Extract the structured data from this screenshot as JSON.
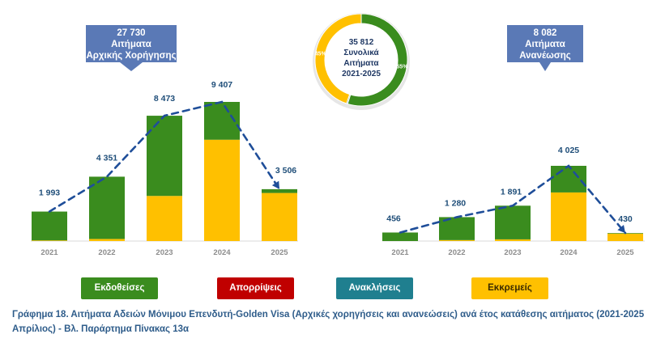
{
  "colors": {
    "issued": "#3a8c1e",
    "rejected": "#c00000",
    "withdrawn": "#1f7f8f",
    "pending": "#ffc000",
    "callout": "#5a79b6",
    "trend": "#1f4e99"
  },
  "callouts": {
    "initial": {
      "line1": "27 730",
      "line2": "Αιτήματα",
      "line3": "Αρχικής Χορήγησης"
    },
    "renewal": {
      "line1": "8 082",
      "line2": "Αιτήματα",
      "line3": "Ανανέωσης"
    }
  },
  "donut_total": {
    "line1": "35 812",
    "line2": "Συνολικά",
    "line3": "Αιτήματα",
    "line4": "2021-2025"
  },
  "legend": {
    "issued": "Εκδοθείσες",
    "rejected": "Απορρίψεις",
    "withdrawn": "Ανακλήσεις",
    "pending": "Εκκρεμείς"
  },
  "caption": {
    "line1": "Γράφημα 18.  Αιτήματα Αδειών Μόνιμου Επενδυτή-Golden Visa (Αρχικές χορηγήσεις και ανανεώσεις) ανά έτος κατάθεσης αιτήματος (2021-2025",
    "line2": "Απρίλιος) - Βλ. Παράρτημα  Πίνακας 13α"
  },
  "chart_data": [
    {
      "type": "donut",
      "slices": [
        {
          "label": "55%",
          "value": 55,
          "color": "#3a8c1e"
        },
        {
          "label": "0%",
          "value": 0.4,
          "color": "#1f7f8f"
        },
        {
          "label": "45%",
          "value": 45,
          "color": "#ffc000"
        }
      ]
    },
    {
      "type": "bar",
      "stacked": true,
      "categories": [
        "2021",
        "2022",
        "2023",
        "2024",
        "2025"
      ],
      "totals": [
        1993,
        4351,
        8473,
        9407,
        3506
      ],
      "total_labels": [
        "1 993",
        "4 351",
        "8 473",
        "9 407",
        "3 506"
      ],
      "series": [
        {
          "name": "Εκκρεμείς",
          "key": "pending",
          "values": [
            40,
            140,
            3050,
            6850,
            3250
          ]
        },
        {
          "name": "Εκδοθείσες",
          "key": "issued",
          "values": [
            1953,
            4211,
            5423,
            2557,
            256
          ]
        }
      ],
      "ylim": [
        0,
        9407
      ]
    },
    {
      "type": "bar",
      "stacked": true,
      "categories": [
        "2021",
        "2022",
        "2023",
        "2024",
        "2025"
      ],
      "totals": [
        456,
        1280,
        1891,
        4025,
        430
      ],
      "total_labels": [
        "456",
        "1 280",
        "1 891",
        "4 025",
        "430"
      ],
      "series": [
        {
          "name": "Εκκρεμείς",
          "key": "pending",
          "values": [
            0,
            50,
            90,
            2600,
            400
          ]
        },
        {
          "name": "Εκδοθείσες",
          "key": "issued",
          "values": [
            456,
            1230,
            1801,
            1425,
            30
          ]
        }
      ],
      "ylim": [
        0,
        4025
      ]
    }
  ]
}
